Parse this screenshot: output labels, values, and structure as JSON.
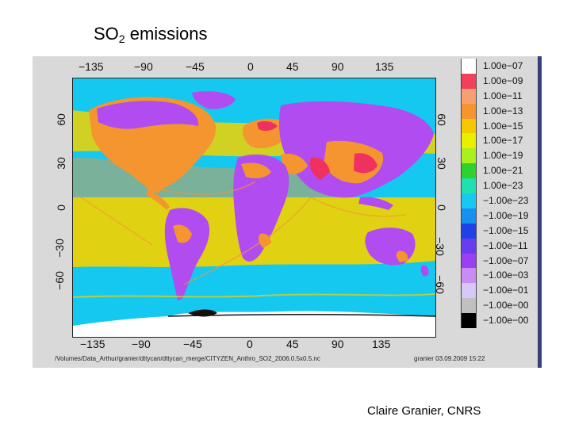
{
  "title": {
    "main": "SO",
    "sub": "2",
    "rest": " emissions"
  },
  "credit": "Claire Granier, CNRS",
  "figure": {
    "lon_ticks_top": [
      "−135",
      "−90",
      "−45",
      "0",
      "45",
      "90",
      "135"
    ],
    "lon_ticks_bottom": [
      "−135",
      "−90",
      "−45",
      "0",
      "45",
      "90",
      "135"
    ],
    "lat_ticks_left": [
      "60",
      "30",
      "0",
      "−30",
      "−60"
    ],
    "lat_ticks_right": [
      "60",
      "30",
      "0",
      "−30",
      "−60"
    ],
    "path_text": "/Volumes/Data_Arthur/granier/dttycan/dttycan_merge/CITYZEN_Anthro_SO2_2006.0.5x0.5.nc",
    "stamp_text": "granier 03.09.2009 15:22"
  },
  "colors": {
    "ocean": "#15c8f0",
    "land_low": "#b04cf0",
    "land_mid": "#f49530",
    "land_high": "#f2e000",
    "land_peak": "#f03060",
    "ship_tracks": "#f2d200"
  },
  "colorbar": [
    {
      "label": "1.00e−07",
      "color": "#ffffff"
    },
    {
      "label": "1.00e−09",
      "color": "#f0405a"
    },
    {
      "label": "1.00e−11",
      "color": "#f5a070"
    },
    {
      "label": "1.00e−13",
      "color": "#f49530"
    },
    {
      "label": "1.00e−15",
      "color": "#f5c800"
    },
    {
      "label": "1.00e−17",
      "color": "#e8f000"
    },
    {
      "label": "1.00e−19",
      "color": "#a8f020"
    },
    {
      "label": "1.00e−21",
      "color": "#30d030"
    },
    {
      "label": "1.00e−23",
      "color": "#20e0b0"
    },
    {
      "label": "−1.00e−23",
      "color": "#18c8f0"
    },
    {
      "label": "−1.00e−19",
      "color": "#1890f0"
    },
    {
      "label": "−1.00e−15",
      "color": "#2040e8"
    },
    {
      "label": "−1.00e−11",
      "color": "#6a3cf0"
    },
    {
      "label": "−1.00e−07",
      "color": "#9a40f0"
    },
    {
      "label": "−1.00e−03",
      "color": "#c88cf5"
    },
    {
      "label": "−1.00e−01",
      "color": "#d8c8f8"
    },
    {
      "label": "−1.00e−00",
      "color": "#c0c0c0"
    },
    {
      "label": "−1.00e−00",
      "color": "#000000"
    }
  ]
}
